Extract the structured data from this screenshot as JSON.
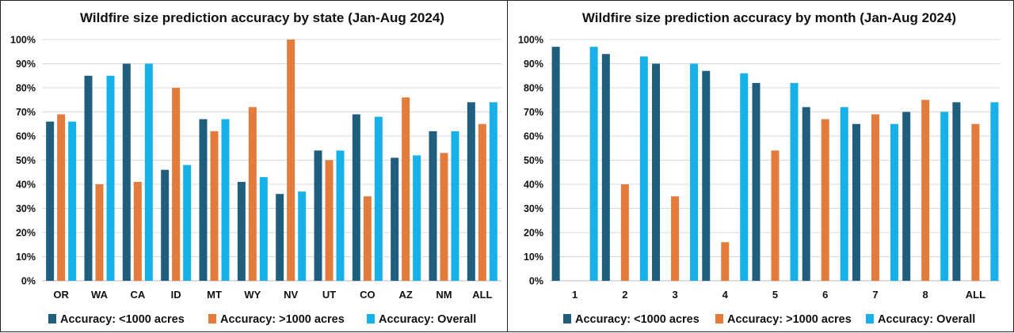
{
  "chart_data": [
    {
      "type": "bar",
      "title": "Wildfire size prediction accuracy by state (Jan-Aug 2024)",
      "categories": [
        "OR",
        "WA",
        "CA",
        "ID",
        "MT",
        "WY",
        "NV",
        "UT",
        "CO",
        "AZ",
        "NM",
        "ALL"
      ],
      "series": [
        {
          "name": "Accuracy: <1000 acres",
          "color": "#1f5e7c",
          "values": [
            66,
            85,
            90,
            46,
            67,
            41,
            36,
            54,
            69,
            51,
            62,
            74
          ]
        },
        {
          "name": "Accuracy: >1000 acres",
          "color": "#e37b3c",
          "values": [
            69,
            40,
            41,
            80,
            62,
            72,
            100,
            50,
            35,
            76,
            53,
            65
          ]
        },
        {
          "name": "Accuracy: Overall",
          "color": "#17b0e8",
          "values": [
            66,
            85,
            90,
            48,
            67,
            43,
            37,
            54,
            68,
            52,
            62,
            74
          ]
        }
      ],
      "yticks": [
        "0%",
        "10%",
        "20%",
        "30%",
        "40%",
        "50%",
        "60%",
        "70%",
        "80%",
        "90%",
        "100%"
      ],
      "ylim": [
        0,
        100
      ],
      "grid": true,
      "legend": "bottom"
    },
    {
      "type": "bar",
      "title": "Wildfire size prediction accuracy by month (Jan-Aug 2024)",
      "categories": [
        "1",
        "2",
        "3",
        "4",
        "5",
        "6",
        "7",
        "8",
        "ALL"
      ],
      "series": [
        {
          "name": "Accuracy: <1000 acres",
          "color": "#1f5e7c",
          "values": [
            97,
            94,
            90,
            87,
            82,
            72,
            65,
            70,
            74
          ]
        },
        {
          "name": "Accuracy: >1000 acres",
          "color": "#e37b3c",
          "values": [
            null,
            40,
            35,
            16,
            54,
            67,
            69,
            75,
            65
          ]
        },
        {
          "name": "Accuracy: Overall",
          "color": "#17b0e8",
          "values": [
            97,
            93,
            90,
            86,
            82,
            72,
            65,
            70,
            74
          ]
        }
      ],
      "yticks": [
        "0%",
        "10%",
        "20%",
        "30%",
        "40%",
        "50%",
        "60%",
        "70%",
        "80%",
        "90%",
        "100%"
      ],
      "ylim": [
        0,
        100
      ],
      "grid": true,
      "legend": "bottom"
    }
  ]
}
